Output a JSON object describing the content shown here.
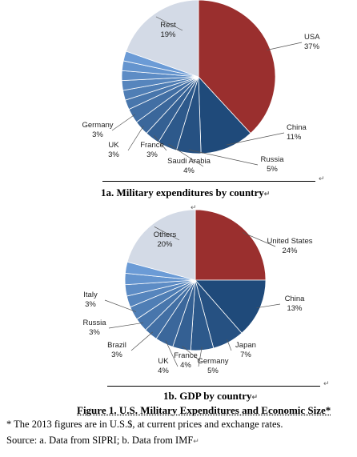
{
  "colors": {
    "first_slice": "#9a2f2e",
    "slice_dark": "#1f4a7a",
    "slice_light": "#6b9bd6",
    "last_slice": "#d3dae6",
    "outline": "#ffffff"
  },
  "chart_data": [
    {
      "type": "pie",
      "caption": "1a. Military expenditures by country",
      "slices": [
        {
          "name": "USA",
          "percent": "37%",
          "value": 37
        },
        {
          "name": "China",
          "percent": "11%",
          "value": 11
        },
        {
          "name": "Russia",
          "percent": "5%",
          "value": 5
        },
        {
          "name": "Saudi Arabia",
          "percent": "4%",
          "value": 4
        },
        {
          "name": "France",
          "percent": "3%",
          "value": 3
        },
        {
          "name": "UK",
          "percent": "3%",
          "value": 3
        },
        {
          "name": "Germany",
          "percent": "3%",
          "value": 3
        },
        {
          "name": "",
          "percent": "",
          "value": 2
        },
        {
          "name": "",
          "percent": "",
          "value": 2
        },
        {
          "name": "",
          "percent": "",
          "value": 2
        },
        {
          "name": "",
          "percent": "",
          "value": 2
        },
        {
          "name": "",
          "percent": "",
          "value": 2
        },
        {
          "name": "",
          "percent": "",
          "value": 2
        },
        {
          "name": "Rest",
          "percent": "19%",
          "value": 19
        }
      ]
    },
    {
      "type": "pie",
      "caption": "1b. GDP by country",
      "slices": [
        {
          "name": "United States",
          "percent": "24%",
          "value": 24
        },
        {
          "name": "China",
          "percent": "13%",
          "value": 13
        },
        {
          "name": "Japan",
          "percent": "7%",
          "value": 7
        },
        {
          "name": "Germany",
          "percent": "5%",
          "value": 5
        },
        {
          "name": "France",
          "percent": "4%",
          "value": 4
        },
        {
          "name": "UK",
          "percent": "4%",
          "value": 4
        },
        {
          "name": "Brazil",
          "percent": "3%",
          "value": 3
        },
        {
          "name": "Russia",
          "percent": "3%",
          "value": 3
        },
        {
          "name": "Italy",
          "percent": "3%",
          "value": 3
        },
        {
          "name": "",
          "percent": "",
          "value": 2.5
        },
        {
          "name": "",
          "percent": "",
          "value": 2.5
        },
        {
          "name": "",
          "percent": "",
          "value": 2.5
        },
        {
          "name": "",
          "percent": "",
          "value": 2.5
        },
        {
          "name": "Others",
          "percent": "20%",
          "value": 20
        }
      ]
    }
  ],
  "figure_title": "Figure 1. U.S. Military Expenditures and Economic Size*",
  "notes": {
    "footnote": "* The 2013 figures are in U.S.$, at current prices and exchange rates.",
    "source": "Source: a. Data from SIPRI; b. Data from IMF"
  },
  "marks": {
    "return": "↵",
    "paragraph": "↵"
  }
}
